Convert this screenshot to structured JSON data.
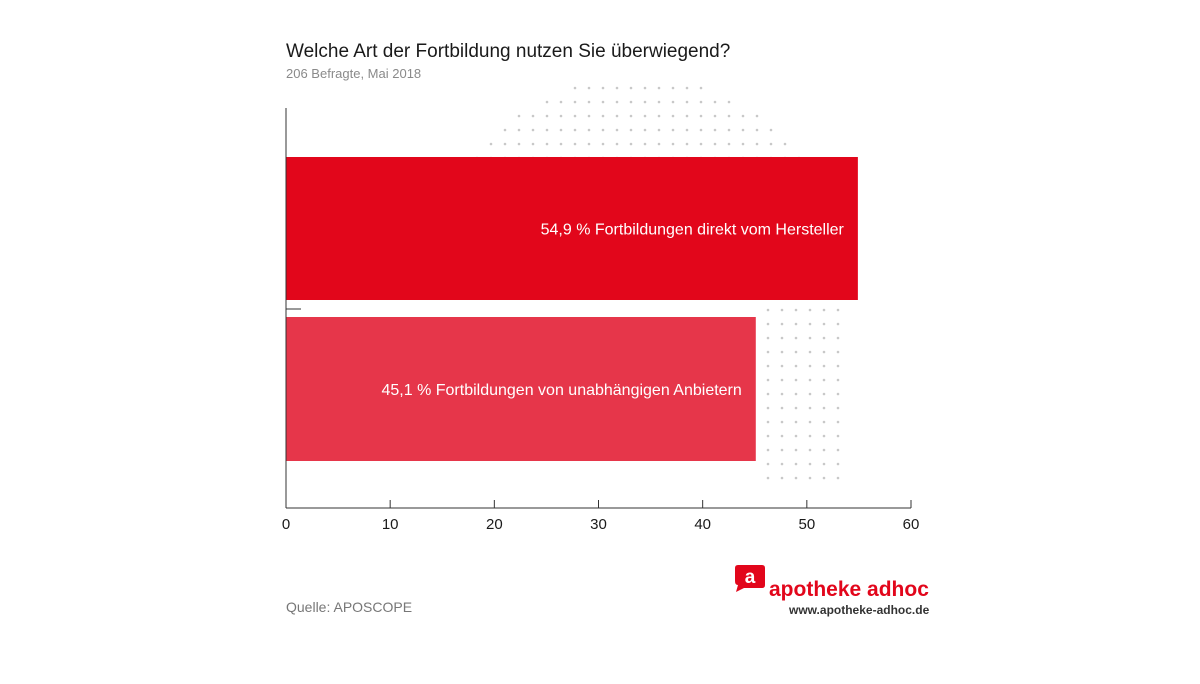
{
  "chart_data": {
    "type": "bar",
    "orientation": "horizontal",
    "title": "Welche Art der Fortbildung nutzen Sie überwiegend?",
    "subtitle": "206 Befragte, Mai 2018",
    "categories": [
      "Fortbildungen direkt vom Hersteller",
      "Fortbildungen von unabhängigen Anbietern"
    ],
    "values": [
      54.9,
      45.1
    ],
    "data_labels": [
      "54,9 % Fortbildungen direkt vom Hersteller",
      "45,1 % Fortbildungen von unabhängigen Anbietern"
    ],
    "colors": [
      "#e2061b",
      "#e6364a"
    ],
    "xlim": [
      0,
      60
    ],
    "xticks": [
      "0",
      "10",
      "20",
      "30",
      "40",
      "50",
      "60"
    ],
    "xlabel": "",
    "ylabel": ""
  },
  "source": "Quelle: APOSCOPE",
  "logo": {
    "name": "apotheke adhoc",
    "url": "www.apotheke-adhoc.de",
    "letter": "a",
    "color": "#e2061b"
  }
}
